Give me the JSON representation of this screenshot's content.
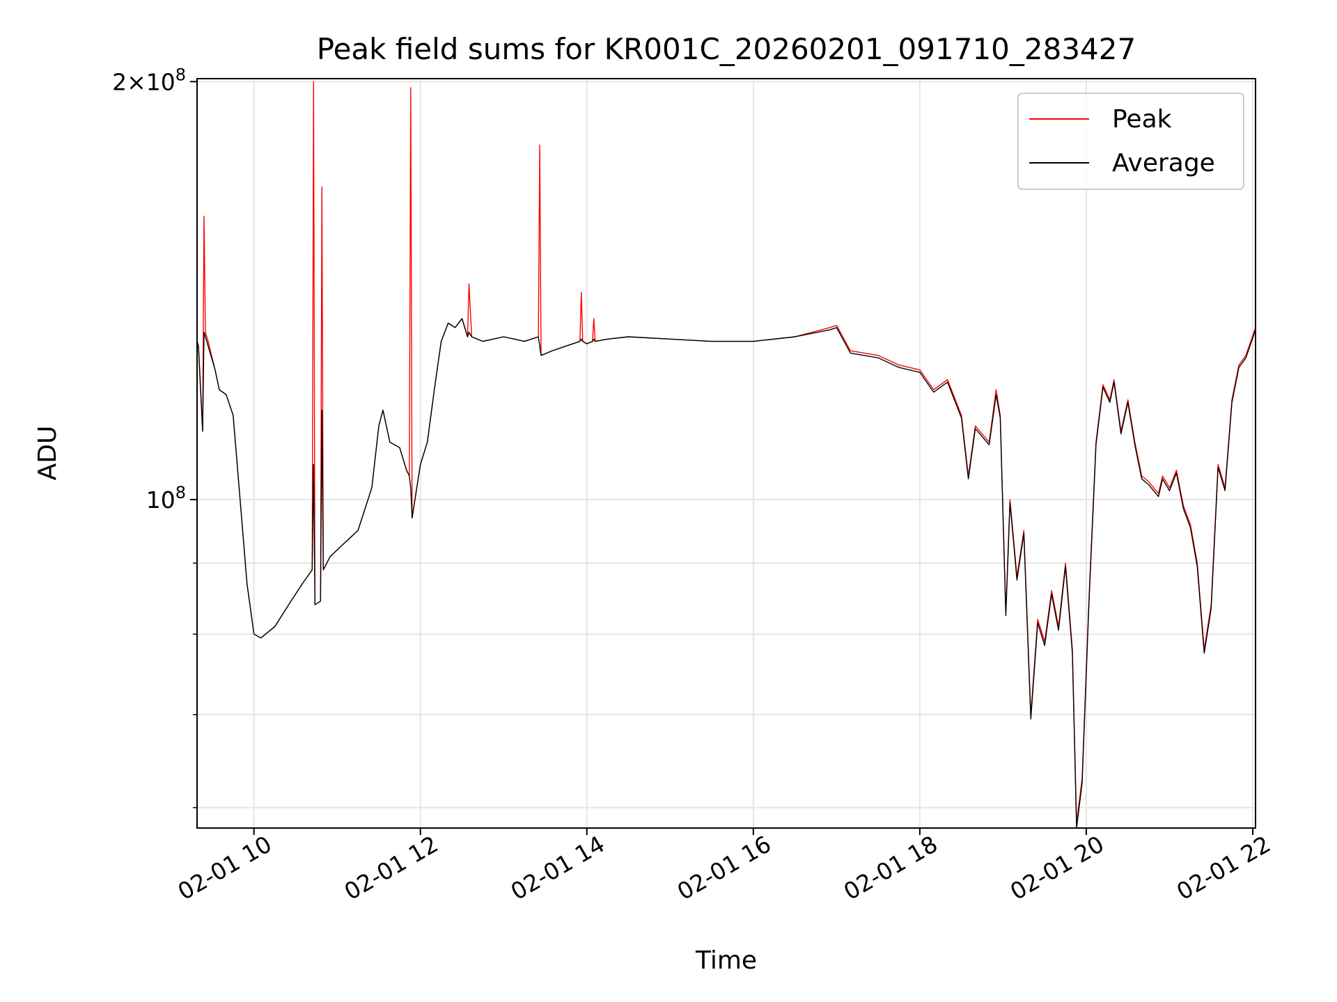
{
  "chart_data": {
    "type": "line",
    "title": "Peak field sums for KR001C_20260201_091710_283427",
    "xlabel": "Time",
    "ylabel": "ADU",
    "x_axis": "time",
    "yscale": "log",
    "xlim": [
      "2026-02-01 09:19",
      "2026-02-01 22:02"
    ],
    "ylim": [
      58000000,
      201000000
    ],
    "x_ticks": [
      "02-01 10",
      "02-01 12",
      "02-01 14",
      "02-01 16",
      "02-01 18",
      "02-01 20",
      "02-01 22"
    ],
    "y_ticks": [
      "2×10^8",
      "10^8"
    ],
    "grid": true,
    "legend_position": "upper right",
    "series": [
      {
        "name": "Peak",
        "color": "#ff0000",
        "points": [
          [
            "2026-02-01 09:19",
            130000000
          ],
          [
            "2026-02-01 09:20",
            129000000
          ],
          [
            "2026-02-01 09:23",
            112000000
          ],
          [
            "2026-02-01 09:24",
            160000000
          ],
          [
            "2026-02-01 09:25",
            132000000
          ],
          [
            "2026-02-01 09:27",
            130000000
          ],
          [
            "2026-02-01 09:32",
            124000000
          ],
          [
            "2026-02-01 09:35",
            120000000
          ],
          [
            "2026-02-01 09:40",
            119000000
          ],
          [
            "2026-02-01 09:45",
            115000000
          ],
          [
            "2026-02-01 09:50",
            100000000
          ],
          [
            "2026-02-01 09:55",
            87000000
          ],
          [
            "2026-02-01 10:00",
            80000000
          ],
          [
            "2026-02-01 10:05",
            79500000
          ],
          [
            "2026-02-01 10:15",
            81000000
          ],
          [
            "2026-02-01 10:25",
            84000000
          ],
          [
            "2026-02-01 10:35",
            87000000
          ],
          [
            "2026-02-01 10:42",
            89000000
          ],
          [
            "2026-02-01 10:43",
            200000000
          ],
          [
            "2026-02-01 10:44",
            84000000
          ],
          [
            "2026-02-01 10:48",
            84500000
          ],
          [
            "2026-02-01 10:49",
            168000000
          ],
          [
            "2026-02-01 10:50",
            89000000
          ],
          [
            "2026-02-01 10:55",
            91000000
          ],
          [
            "2026-02-01 11:05",
            93000000
          ],
          [
            "2026-02-01 11:15",
            95000000
          ],
          [
            "2026-02-01 11:25",
            102000000
          ],
          [
            "2026-02-01 11:30",
            113000000
          ],
          [
            "2026-02-01 11:33",
            116000000
          ],
          [
            "2026-02-01 11:38",
            110000000
          ],
          [
            "2026-02-01 11:45",
            109000000
          ],
          [
            "2026-02-01 11:50",
            105000000
          ],
          [
            "2026-02-01 11:52",
            104000000
          ],
          [
            "2026-02-01 11:53",
            198000000
          ],
          [
            "2026-02-01 11:54",
            97000000
          ],
          [
            "2026-02-01 12:00",
            106000000
          ],
          [
            "2026-02-01 12:05",
            110000000
          ],
          [
            "2026-02-01 12:10",
            120000000
          ],
          [
            "2026-02-01 12:15",
            130000000
          ],
          [
            "2026-02-01 12:20",
            134000000
          ],
          [
            "2026-02-01 12:25",
            133000000
          ],
          [
            "2026-02-01 12:30",
            135000000
          ],
          [
            "2026-02-01 12:34",
            131000000
          ],
          [
            "2026-02-01 12:35",
            143000000
          ],
          [
            "2026-02-01 12:37",
            131000000
          ],
          [
            "2026-02-01 12:45",
            130000000
          ],
          [
            "2026-02-01 13:00",
            131000000
          ],
          [
            "2026-02-01 13:15",
            130000000
          ],
          [
            "2026-02-01 13:25",
            131000000
          ],
          [
            "2026-02-01 13:26",
            180000000
          ],
          [
            "2026-02-01 13:27",
            127000000
          ],
          [
            "2026-02-01 13:35",
            128000000
          ],
          [
            "2026-02-01 13:45",
            129000000
          ],
          [
            "2026-02-01 13:55",
            130000000
          ],
          [
            "2026-02-01 13:56",
            141000000
          ],
          [
            "2026-02-01 13:57",
            130000000
          ],
          [
            "2026-02-01 14:00",
            129500000
          ],
          [
            "2026-02-01 14:04",
            130000000
          ],
          [
            "2026-02-01 14:05",
            135000000
          ],
          [
            "2026-02-01 14:06",
            130000000
          ],
          [
            "2026-02-01 14:15",
            130500000
          ],
          [
            "2026-02-01 14:30",
            131000000
          ],
          [
            "2026-02-01 15:00",
            130500000
          ],
          [
            "2026-02-01 15:30",
            130000000
          ],
          [
            "2026-02-01 16:00",
            130000000
          ],
          [
            "2026-02-01 16:30",
            131000000
          ],
          [
            "2026-02-01 16:55",
            133000000
          ],
          [
            "2026-02-01 17:00",
            133500000
          ],
          [
            "2026-02-01 17:10",
            128000000
          ],
          [
            "2026-02-01 17:30",
            127000000
          ],
          [
            "2026-02-01 17:45",
            125000000
          ],
          [
            "2026-02-01 18:00",
            124000000
          ],
          [
            "2026-02-01 18:10",
            120000000
          ],
          [
            "2026-02-01 18:20",
            122000000
          ],
          [
            "2026-02-01 18:30",
            115000000
          ],
          [
            "2026-02-01 18:35",
            104000000
          ],
          [
            "2026-02-01 18:40",
            113000000
          ],
          [
            "2026-02-01 18:50",
            110000000
          ],
          [
            "2026-02-01 18:55",
            120000000
          ],
          [
            "2026-02-01 18:58",
            115000000
          ],
          [
            "2026-02-01 19:02",
            83000000
          ],
          [
            "2026-02-01 19:05",
            100000000
          ],
          [
            "2026-02-01 19:10",
            88000000
          ],
          [
            "2026-02-01 19:15",
            95000000
          ],
          [
            "2026-02-01 19:20",
            70000000
          ],
          [
            "2026-02-01 19:25",
            82000000
          ],
          [
            "2026-02-01 19:30",
            79000000
          ],
          [
            "2026-02-01 19:35",
            86000000
          ],
          [
            "2026-02-01 19:40",
            81000000
          ],
          [
            "2026-02-01 19:45",
            90000000
          ],
          [
            "2026-02-01 19:50",
            78000000
          ],
          [
            "2026-02-01 19:53",
            58500000
          ],
          [
            "2026-02-01 19:57",
            63000000
          ],
          [
            "2026-02-01 20:02",
            85000000
          ],
          [
            "2026-02-01 20:07",
            110000000
          ],
          [
            "2026-02-01 20:12",
            121000000
          ],
          [
            "2026-02-01 20:17",
            118000000
          ],
          [
            "2026-02-01 20:20",
            122000000
          ],
          [
            "2026-02-01 20:25",
            112000000
          ],
          [
            "2026-02-01 20:30",
            118000000
          ],
          [
            "2026-02-01 20:35",
            110000000
          ],
          [
            "2026-02-01 20:40",
            104000000
          ],
          [
            "2026-02-01 20:45",
            103000000
          ],
          [
            "2026-02-01 20:52",
            101000000
          ],
          [
            "2026-02-01 20:55",
            104000000
          ],
          [
            "2026-02-01 21:00",
            102000000
          ],
          [
            "2026-02-01 21:05",
            105000000
          ],
          [
            "2026-02-01 21:10",
            99000000
          ],
          [
            "2026-02-01 21:15",
            96000000
          ],
          [
            "2026-02-01 21:20",
            90000000
          ],
          [
            "2026-02-01 21:25",
            78000000
          ],
          [
            "2026-02-01 21:30",
            84000000
          ],
          [
            "2026-02-01 21:35",
            106000000
          ],
          [
            "2026-02-01 21:40",
            102000000
          ],
          [
            "2026-02-01 21:45",
            118000000
          ],
          [
            "2026-02-01 21:50",
            125000000
          ],
          [
            "2026-02-01 21:55",
            127000000
          ],
          [
            "2026-02-01 22:02",
            133000000
          ]
        ]
      },
      {
        "name": "Average",
        "color": "#000000",
        "points": [
          [
            "2026-02-01 09:19",
            130000000
          ],
          [
            "2026-02-01 09:20",
            129000000
          ],
          [
            "2026-02-01 09:23",
            112000000
          ],
          [
            "2026-02-01 09:24",
            132000000
          ],
          [
            "2026-02-01 09:25",
            131000000
          ],
          [
            "2026-02-01 09:27",
            129000000
          ],
          [
            "2026-02-01 09:32",
            124000000
          ],
          [
            "2026-02-01 09:35",
            120000000
          ],
          [
            "2026-02-01 09:40",
            119000000
          ],
          [
            "2026-02-01 09:45",
            115000000
          ],
          [
            "2026-02-01 09:50",
            100000000
          ],
          [
            "2026-02-01 09:55",
            87000000
          ],
          [
            "2026-02-01 10:00",
            80000000
          ],
          [
            "2026-02-01 10:05",
            79500000
          ],
          [
            "2026-02-01 10:15",
            81000000
          ],
          [
            "2026-02-01 10:25",
            84000000
          ],
          [
            "2026-02-01 10:35",
            87000000
          ],
          [
            "2026-02-01 10:42",
            89000000
          ],
          [
            "2026-02-01 10:43",
            106000000
          ],
          [
            "2026-02-01 10:44",
            84000000
          ],
          [
            "2026-02-01 10:48",
            84500000
          ],
          [
            "2026-02-01 10:49",
            116000000
          ],
          [
            "2026-02-01 10:50",
            89000000
          ],
          [
            "2026-02-01 10:55",
            91000000
          ],
          [
            "2026-02-01 11:05",
            93000000
          ],
          [
            "2026-02-01 11:15",
            95000000
          ],
          [
            "2026-02-01 11:25",
            102000000
          ],
          [
            "2026-02-01 11:30",
            113000000
          ],
          [
            "2026-02-01 11:33",
            116000000
          ],
          [
            "2026-02-01 11:38",
            110000000
          ],
          [
            "2026-02-01 11:45",
            109000000
          ],
          [
            "2026-02-01 11:50",
            105000000
          ],
          [
            "2026-02-01 11:52",
            104000000
          ],
          [
            "2026-02-01 11:53",
            102000000
          ],
          [
            "2026-02-01 11:54",
            97000000
          ],
          [
            "2026-02-01 12:00",
            106000000
          ],
          [
            "2026-02-01 12:05",
            110000000
          ],
          [
            "2026-02-01 12:10",
            120000000
          ],
          [
            "2026-02-01 12:15",
            130000000
          ],
          [
            "2026-02-01 12:20",
            134000000
          ],
          [
            "2026-02-01 12:25",
            133000000
          ],
          [
            "2026-02-01 12:30",
            135000000
          ],
          [
            "2026-02-01 12:34",
            131000000
          ],
          [
            "2026-02-01 12:35",
            132000000
          ],
          [
            "2026-02-01 12:37",
            131000000
          ],
          [
            "2026-02-01 12:45",
            130000000
          ],
          [
            "2026-02-01 13:00",
            131000000
          ],
          [
            "2026-02-01 13:15",
            130000000
          ],
          [
            "2026-02-01 13:25",
            131000000
          ],
          [
            "2026-02-01 13:26",
            129000000
          ],
          [
            "2026-02-01 13:27",
            127000000
          ],
          [
            "2026-02-01 13:35",
            128000000
          ],
          [
            "2026-02-01 13:45",
            129000000
          ],
          [
            "2026-02-01 13:55",
            130000000
          ],
          [
            "2026-02-01 13:56",
            130500000
          ],
          [
            "2026-02-01 13:57",
            130000000
          ],
          [
            "2026-02-01 14:00",
            129500000
          ],
          [
            "2026-02-01 14:04",
            130000000
          ],
          [
            "2026-02-01 14:05",
            130500000
          ],
          [
            "2026-02-01 14:06",
            130000000
          ],
          [
            "2026-02-01 14:15",
            130500000
          ],
          [
            "2026-02-01 14:30",
            131000000
          ],
          [
            "2026-02-01 15:00",
            130500000
          ],
          [
            "2026-02-01 15:30",
            130000000
          ],
          [
            "2026-02-01 16:00",
            130000000
          ],
          [
            "2026-02-01 16:30",
            131000000
          ],
          [
            "2026-02-01 16:55",
            132500000
          ],
          [
            "2026-02-01 17:00",
            133000000
          ],
          [
            "2026-02-01 17:10",
            127500000
          ],
          [
            "2026-02-01 17:30",
            126500000
          ],
          [
            "2026-02-01 17:45",
            124500000
          ],
          [
            "2026-02-01 18:00",
            123500000
          ],
          [
            "2026-02-01 18:10",
            119500000
          ],
          [
            "2026-02-01 18:20",
            121500000
          ],
          [
            "2026-02-01 18:30",
            114500000
          ],
          [
            "2026-02-01 18:35",
            103500000
          ],
          [
            "2026-02-01 18:40",
            112500000
          ],
          [
            "2026-02-01 18:50",
            109500000
          ],
          [
            "2026-02-01 18:55",
            119000000
          ],
          [
            "2026-02-01 18:58",
            114500000
          ],
          [
            "2026-02-01 19:02",
            82500000
          ],
          [
            "2026-02-01 19:05",
            99500000
          ],
          [
            "2026-02-01 19:10",
            87500000
          ],
          [
            "2026-02-01 19:15",
            94500000
          ],
          [
            "2026-02-01 19:20",
            69500000
          ],
          [
            "2026-02-01 19:25",
            81500000
          ],
          [
            "2026-02-01 19:30",
            78500000
          ],
          [
            "2026-02-01 19:35",
            85500000
          ],
          [
            "2026-02-01 19:40",
            80500000
          ],
          [
            "2026-02-01 19:45",
            89500000
          ],
          [
            "2026-02-01 19:50",
            77500000
          ],
          [
            "2026-02-01 19:53",
            58000000
          ],
          [
            "2026-02-01 19:57",
            62500000
          ],
          [
            "2026-02-01 20:02",
            84500000
          ],
          [
            "2026-02-01 20:07",
            109500000
          ],
          [
            "2026-02-01 20:12",
            120500000
          ],
          [
            "2026-02-01 20:17",
            117500000
          ],
          [
            "2026-02-01 20:20",
            121500000
          ],
          [
            "2026-02-01 20:25",
            111500000
          ],
          [
            "2026-02-01 20:30",
            117500000
          ],
          [
            "2026-02-01 20:35",
            109500000
          ],
          [
            "2026-02-01 20:40",
            103500000
          ],
          [
            "2026-02-01 20:45",
            102500000
          ],
          [
            "2026-02-01 20:52",
            100500000
          ],
          [
            "2026-02-01 20:55",
            103500000
          ],
          [
            "2026-02-01 21:00",
            101500000
          ],
          [
            "2026-02-01 21:05",
            104500000
          ],
          [
            "2026-02-01 21:10",
            98500000
          ],
          [
            "2026-02-01 21:15",
            95500000
          ],
          [
            "2026-02-01 21:20",
            89500000
          ],
          [
            "2026-02-01 21:25",
            77500000
          ],
          [
            "2026-02-01 21:30",
            83500000
          ],
          [
            "2026-02-01 21:35",
            105500000
          ],
          [
            "2026-02-01 21:40",
            101500000
          ],
          [
            "2026-02-01 21:45",
            117500000
          ],
          [
            "2026-02-01 21:50",
            124500000
          ],
          [
            "2026-02-01 21:55",
            126500000
          ],
          [
            "2026-02-01 22:02",
            132500000
          ]
        ]
      }
    ]
  }
}
